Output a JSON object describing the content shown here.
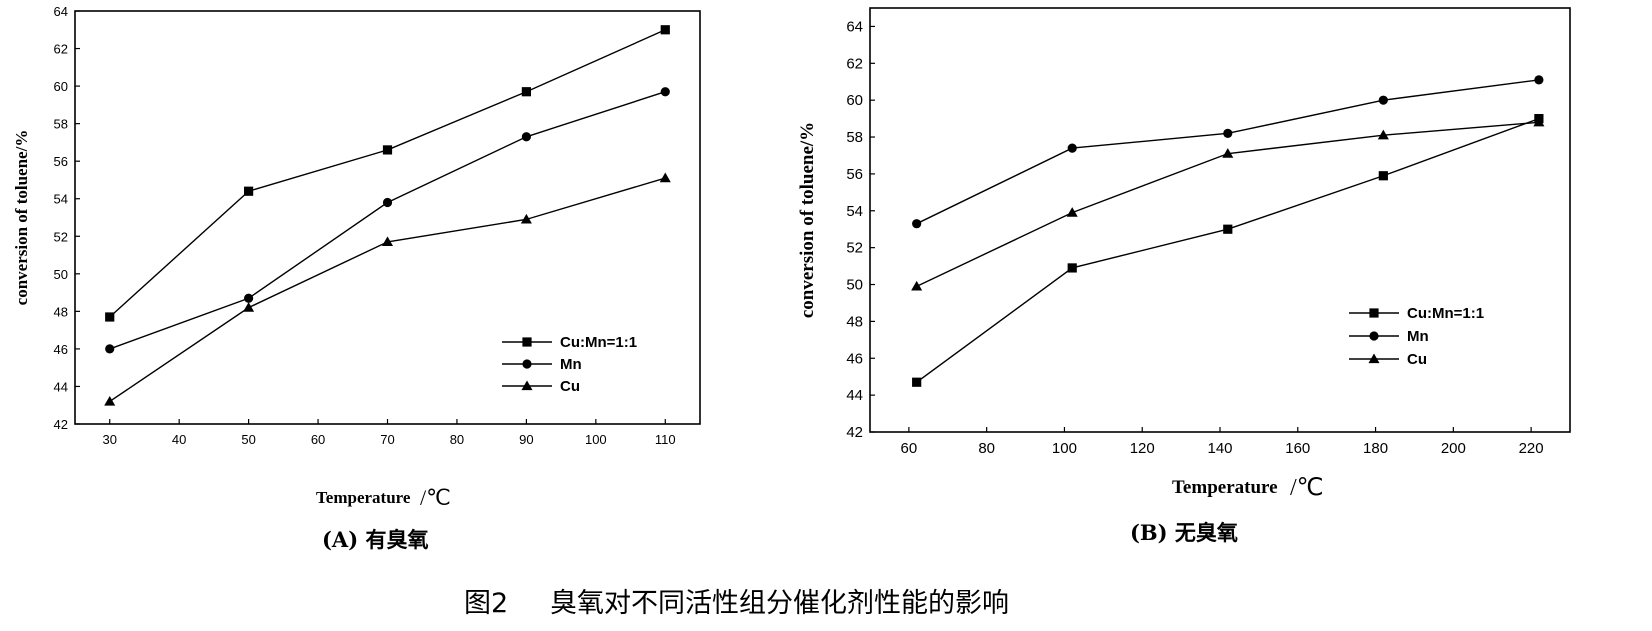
{
  "figure": {
    "caption_number": "图2",
    "caption_text": "臭氧对不同活性组分催化剂性能的影响"
  },
  "chart_data": [
    {
      "type": "line",
      "panel_label": "(A) 有臭氧",
      "xlabel": "Temperature",
      "xunit": "/℃",
      "ylabel": "conversion of toluene/%",
      "xlim": [
        25,
        115
      ],
      "ylim": [
        42,
        64
      ],
      "xticks": [
        30,
        40,
        50,
        60,
        70,
        80,
        90,
        100,
        110
      ],
      "yticks": [
        42,
        44,
        46,
        48,
        50,
        52,
        54,
        56,
        58,
        60,
        62,
        64
      ],
      "x": [
        30,
        50,
        70,
        90,
        110
      ],
      "legend_position": "lower-right",
      "series": [
        {
          "name": "Cu:Mn=1:1",
          "marker": "square",
          "values": [
            47.7,
            54.4,
            56.6,
            59.7,
            63.0
          ]
        },
        {
          "name": "Mn",
          "marker": "circle",
          "values": [
            46.0,
            48.7,
            53.8,
            57.3,
            59.7
          ]
        },
        {
          "name": "Cu",
          "marker": "triangle",
          "values": [
            43.2,
            48.2,
            51.7,
            52.9,
            55.1
          ]
        }
      ]
    },
    {
      "type": "line",
      "panel_label": "(B) 无臭氧",
      "xlabel": "Temperature",
      "xunit": "/℃",
      "ylabel": "conversion of toluene/%",
      "xlim": [
        50,
        230
      ],
      "ylim": [
        42,
        65
      ],
      "xticks": [
        60,
        80,
        100,
        120,
        140,
        160,
        180,
        200,
        220
      ],
      "yticks": [
        42,
        44,
        46,
        48,
        50,
        52,
        54,
        56,
        58,
        60,
        62,
        64
      ],
      "x": [
        62,
        102,
        142,
        182,
        222
      ],
      "legend_position": "lower-right",
      "series": [
        {
          "name": "Cu:Mn=1:1",
          "marker": "square",
          "values": [
            44.7,
            50.9,
            53.0,
            55.9,
            59.0
          ]
        },
        {
          "name": "Mn",
          "marker": "circle",
          "values": [
            53.3,
            57.4,
            58.2,
            60.0,
            61.1
          ]
        },
        {
          "name": "Cu",
          "marker": "triangle",
          "values": [
            49.9,
            53.9,
            57.1,
            58.1,
            58.8
          ]
        }
      ]
    }
  ]
}
